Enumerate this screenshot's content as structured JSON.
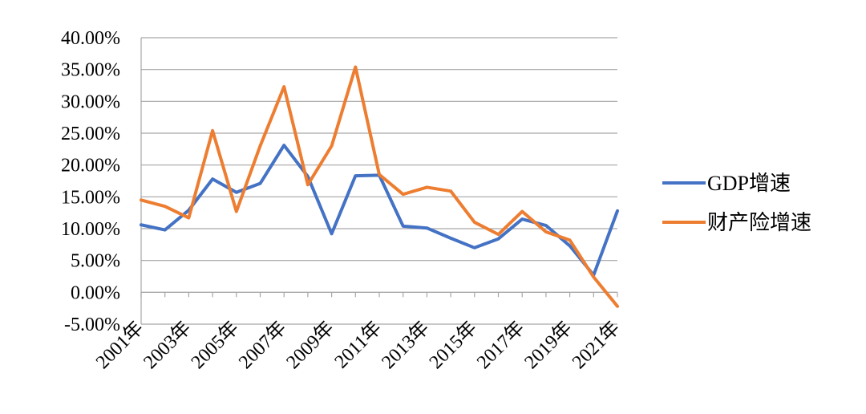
{
  "chart_data": {
    "type": "line",
    "title": "",
    "xlabel": "",
    "ylabel": "",
    "ylim": [
      -5,
      40
    ],
    "y_ticks": [
      {
        "value": 40,
        "label": "40.00%"
      },
      {
        "value": 35,
        "label": "35.00%"
      },
      {
        "value": 30,
        "label": "30.00%"
      },
      {
        "value": 25,
        "label": "25.00%"
      },
      {
        "value": 20,
        "label": "20.00%"
      },
      {
        "value": 15,
        "label": "15.00%"
      },
      {
        "value": 10,
        "label": "10.00%"
      },
      {
        "value": 5,
        "label": "5.00%"
      },
      {
        "value": 0,
        "label": "0.00%"
      },
      {
        "value": -5,
        "label": "-5.00%"
      }
    ],
    "categories": [
      "2001年",
      "2002年",
      "2003年",
      "2004年",
      "2005年",
      "2006年",
      "2007年",
      "2008年",
      "2009年",
      "2010年",
      "2011年",
      "2012年",
      "2013年",
      "2014年",
      "2015年",
      "2016年",
      "2017年",
      "2018年",
      "2019年",
      "2020年",
      "2021年"
    ],
    "x_tick_labels": [
      "2001年",
      "2003年",
      "2005年",
      "2007年",
      "2009年",
      "2011年",
      "2013年",
      "2015年",
      "2017年",
      "2019年",
      "2021年"
    ],
    "grid": true,
    "legend_position": "right",
    "series": [
      {
        "name": "GDP增速",
        "color": "#4472c4",
        "values": [
          10.6,
          9.8,
          12.9,
          17.8,
          15.7,
          17.1,
          23.1,
          18.2,
          9.2,
          18.3,
          18.4,
          10.4,
          10.1,
          8.5,
          7.0,
          8.4,
          11.5,
          10.5,
          7.3,
          2.7,
          12.8
        ]
      },
      {
        "name": "财产险增速",
        "color": "#ed7d31",
        "values": [
          14.5,
          13.5,
          11.7,
          25.4,
          12.7,
          23.0,
          32.3,
          16.9,
          23.0,
          35.4,
          18.5,
          15.4,
          16.5,
          15.9,
          11.0,
          9.1,
          12.7,
          9.5,
          8.2,
          2.4,
          -2.2
        ]
      }
    ]
  }
}
